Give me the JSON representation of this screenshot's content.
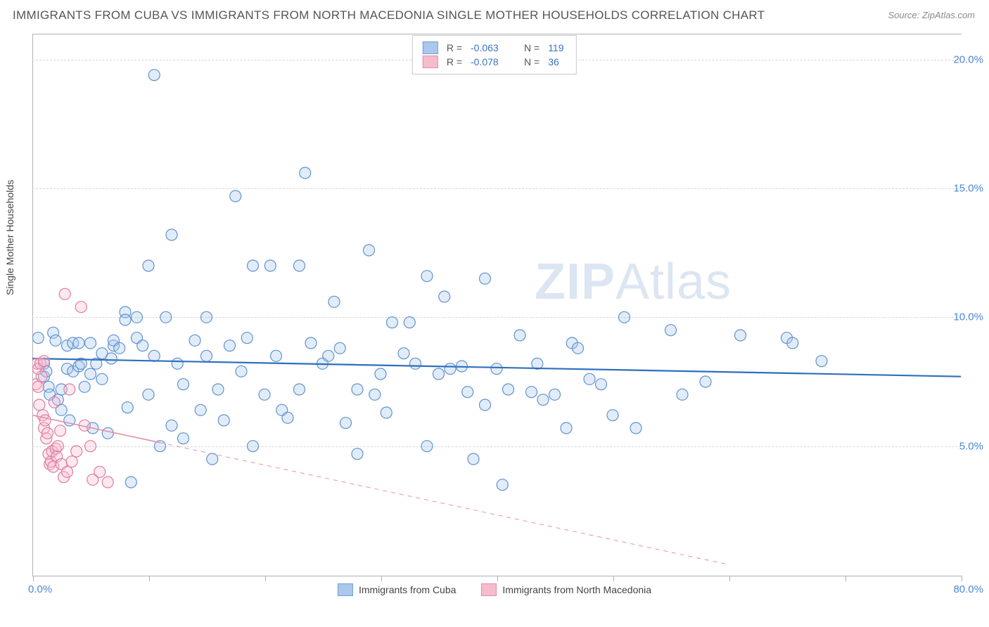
{
  "title": "IMMIGRANTS FROM CUBA VS IMMIGRANTS FROM NORTH MACEDONIA SINGLE MOTHER HOUSEHOLDS CORRELATION CHART",
  "source": "Source: ZipAtlas.com",
  "y_axis_label": "Single Mother Households",
  "watermark_prefix": "ZIP",
  "watermark_suffix": "Atlas",
  "chart": {
    "type": "scatter",
    "x_domain": [
      0,
      80
    ],
    "y_domain": [
      0,
      21
    ],
    "x_tick_percent_positions": [
      0,
      10,
      20,
      30,
      40,
      50,
      60,
      70,
      80
    ],
    "x_start_label": "0.0%",
    "x_end_label": "80.0%",
    "y_ticks": [
      {
        "value": 5,
        "label": "5.0%"
      },
      {
        "value": 10,
        "label": "10.0%"
      },
      {
        "value": 15,
        "label": "15.0%"
      },
      {
        "value": 20,
        "label": "20.0%"
      }
    ],
    "background_color": "#ffffff",
    "grid_color": "#d8d8d8",
    "axis_color": "#b0b0b0",
    "tick_label_color": "#4a86d8",
    "marker_radius": 8,
    "marker_stroke_width": 1.2,
    "marker_fill_opacity": 0.35,
    "series": [
      {
        "id": "cuba",
        "label": "Immigrants from Cuba",
        "R": "-0.063",
        "N": "119",
        "marker_fill": "#a9c8ec",
        "marker_stroke": "#5f92cf",
        "trend_color": "#2e6fbd",
        "trend_line_width": 2.2,
        "trend_dash": "none",
        "trend": {
          "x1": 0,
          "y1": 8.4,
          "x2": 80,
          "y2": 7.7
        },
        "points": [
          [
            0.5,
            9.2
          ],
          [
            1,
            8.2
          ],
          [
            1,
            7.7
          ],
          [
            1.2,
            7.9
          ],
          [
            1.4,
            7.3
          ],
          [
            1.5,
            7.0
          ],
          [
            1.8,
            9.4
          ],
          [
            2,
            9.1
          ],
          [
            2.2,
            6.8
          ],
          [
            2.5,
            6.4
          ],
          [
            2.5,
            7.2
          ],
          [
            3,
            8.9
          ],
          [
            3,
            8.0
          ],
          [
            3.2,
            6.0
          ],
          [
            3.5,
            7.9
          ],
          [
            3.5,
            9.0
          ],
          [
            4,
            9.0
          ],
          [
            4,
            8.1
          ],
          [
            4.2,
            8.2
          ],
          [
            4.5,
            7.3
          ],
          [
            5,
            9.0
          ],
          [
            5,
            7.8
          ],
          [
            5.2,
            5.7
          ],
          [
            5.5,
            8.2
          ],
          [
            6,
            7.6
          ],
          [
            6,
            8.6
          ],
          [
            6.5,
            5.5
          ],
          [
            6.8,
            8.4
          ],
          [
            7,
            8.9
          ],
          [
            7,
            9.1
          ],
          [
            7.5,
            8.8
          ],
          [
            8,
            10.2
          ],
          [
            8,
            9.9
          ],
          [
            8.2,
            6.5
          ],
          [
            8.5,
            3.6
          ],
          [
            9,
            9.2
          ],
          [
            9,
            10.0
          ],
          [
            9.5,
            8.9
          ],
          [
            10,
            12.0
          ],
          [
            10,
            7.0
          ],
          [
            10.5,
            19.4
          ],
          [
            10.5,
            8.5
          ],
          [
            11,
            5.0
          ],
          [
            11.5,
            10.0
          ],
          [
            12,
            13.2
          ],
          [
            12,
            5.8
          ],
          [
            12.5,
            8.2
          ],
          [
            13,
            7.4
          ],
          [
            13,
            5.3
          ],
          [
            14,
            9.1
          ],
          [
            14.5,
            6.4
          ],
          [
            15,
            8.5
          ],
          [
            15,
            10.0
          ],
          [
            15.5,
            4.5
          ],
          [
            16,
            7.2
          ],
          [
            16.5,
            6.0
          ],
          [
            17,
            8.9
          ],
          [
            17.5,
            14.7
          ],
          [
            18,
            7.9
          ],
          [
            18.5,
            9.2
          ],
          [
            19,
            12.0
          ],
          [
            19,
            5.0
          ],
          [
            20,
            7.0
          ],
          [
            20.5,
            12.0
          ],
          [
            21,
            8.5
          ],
          [
            21.5,
            6.4
          ],
          [
            22,
            6.1
          ],
          [
            23,
            12.0
          ],
          [
            23,
            7.2
          ],
          [
            23.5,
            15.6
          ],
          [
            24,
            9.0
          ],
          [
            25,
            8.2
          ],
          [
            25.5,
            8.5
          ],
          [
            26,
            10.6
          ],
          [
            26.5,
            8.8
          ],
          [
            27,
            5.9
          ],
          [
            28,
            4.7
          ],
          [
            28,
            7.2
          ],
          [
            29,
            12.6
          ],
          [
            29.5,
            7.0
          ],
          [
            30,
            7.8
          ],
          [
            30.5,
            6.3
          ],
          [
            31,
            9.8
          ],
          [
            32,
            8.6
          ],
          [
            32.5,
            9.8
          ],
          [
            33,
            8.2
          ],
          [
            34,
            5.0
          ],
          [
            34,
            11.6
          ],
          [
            35,
            7.8
          ],
          [
            35.5,
            10.8
          ],
          [
            36,
            8.0
          ],
          [
            37,
            8.1
          ],
          [
            37.5,
            7.1
          ],
          [
            38,
            4.5
          ],
          [
            39,
            11.5
          ],
          [
            39,
            6.6
          ],
          [
            40,
            8.0
          ],
          [
            40.5,
            3.5
          ],
          [
            41,
            7.2
          ],
          [
            42,
            9.3
          ],
          [
            43,
            7.1
          ],
          [
            43.5,
            8.2
          ],
          [
            44,
            6.8
          ],
          [
            45,
            7.0
          ],
          [
            46,
            5.7
          ],
          [
            46.5,
            9.0
          ],
          [
            47,
            8.8
          ],
          [
            48,
            7.6
          ],
          [
            49,
            7.4
          ],
          [
            50,
            6.2
          ],
          [
            51,
            10.0
          ],
          [
            52,
            5.7
          ],
          [
            55,
            9.5
          ],
          [
            56,
            7.0
          ],
          [
            58,
            7.5
          ],
          [
            61,
            9.3
          ],
          [
            65,
            9.2
          ],
          [
            65.5,
            9.0
          ],
          [
            68,
            8.3
          ]
        ]
      },
      {
        "id": "macedonia",
        "label": "Immigrants from North Macedonia",
        "R": "-0.078",
        "N": "36",
        "marker_fill": "#f5bccd",
        "marker_stroke": "#e07ba0",
        "trend_color": "#e58fab",
        "trend_line_width": 1.6,
        "trend_dash": "solid_then_dash",
        "trend_solid_until_x": 11,
        "trend": {
          "x1": 0,
          "y1": 6.2,
          "x2": 60,
          "y2": 0.4
        },
        "points": [
          [
            0.3,
            7.4
          ],
          [
            0.4,
            8.2
          ],
          [
            0.5,
            8.0
          ],
          [
            0.5,
            7.3
          ],
          [
            0.6,
            6.6
          ],
          [
            0.7,
            8.2
          ],
          [
            0.8,
            7.7
          ],
          [
            0.9,
            6.2
          ],
          [
            1.0,
            5.7
          ],
          [
            1.0,
            8.3
          ],
          [
            1.1,
            6.0
          ],
          [
            1.2,
            5.3
          ],
          [
            1.3,
            5.5
          ],
          [
            1.4,
            4.7
          ],
          [
            1.5,
            4.3
          ],
          [
            1.6,
            4.4
          ],
          [
            1.7,
            4.8
          ],
          [
            1.8,
            4.2
          ],
          [
            1.9,
            6.7
          ],
          [
            2.0,
            4.9
          ],
          [
            2.1,
            4.6
          ],
          [
            2.2,
            5.0
          ],
          [
            2.4,
            5.6
          ],
          [
            2.5,
            4.3
          ],
          [
            2.7,
            3.8
          ],
          [
            2.8,
            10.9
          ],
          [
            3.0,
            4.0
          ],
          [
            3.2,
            7.2
          ],
          [
            3.4,
            4.4
          ],
          [
            3.8,
            4.8
          ],
          [
            4.2,
            10.4
          ],
          [
            4.5,
            5.8
          ],
          [
            5.0,
            5.0
          ],
          [
            5.2,
            3.7
          ],
          [
            5.8,
            4.0
          ],
          [
            6.5,
            3.6
          ]
        ]
      }
    ]
  }
}
